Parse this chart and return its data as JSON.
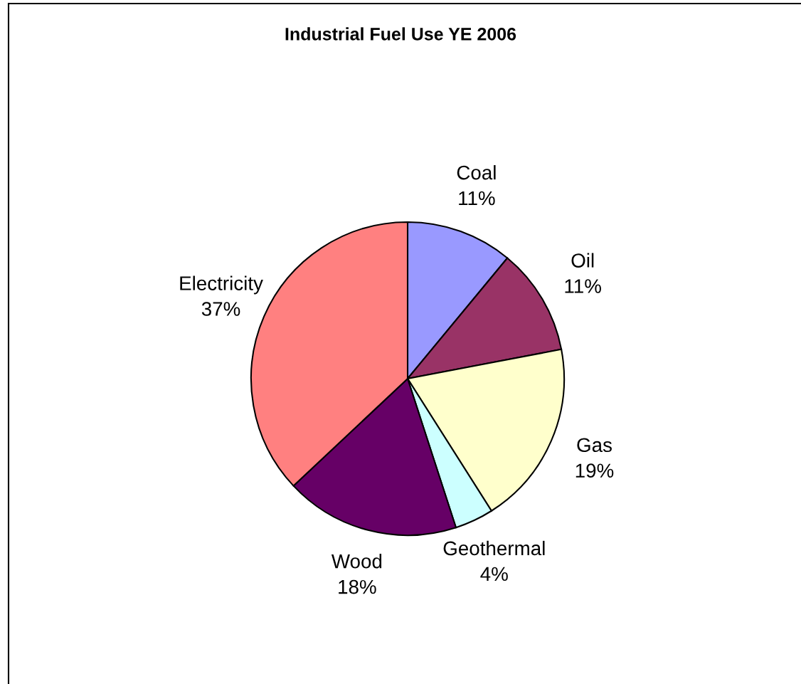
{
  "chart_data": {
    "type": "pie",
    "title": "Industrial Fuel Use YE 2006",
    "categories": [
      "Coal",
      "Oil",
      "Gas",
      "Geothermal",
      "Wood",
      "Electricity"
    ],
    "values": [
      11,
      11,
      19,
      4,
      18,
      37
    ],
    "value_labels": [
      "11%",
      "11%",
      "19%",
      "4%",
      "18%",
      "37%"
    ],
    "colors": [
      "#9999ff",
      "#993366",
      "#ffffcc",
      "#ccffff",
      "#660066",
      "#ff8080"
    ],
    "legend": false
  }
}
